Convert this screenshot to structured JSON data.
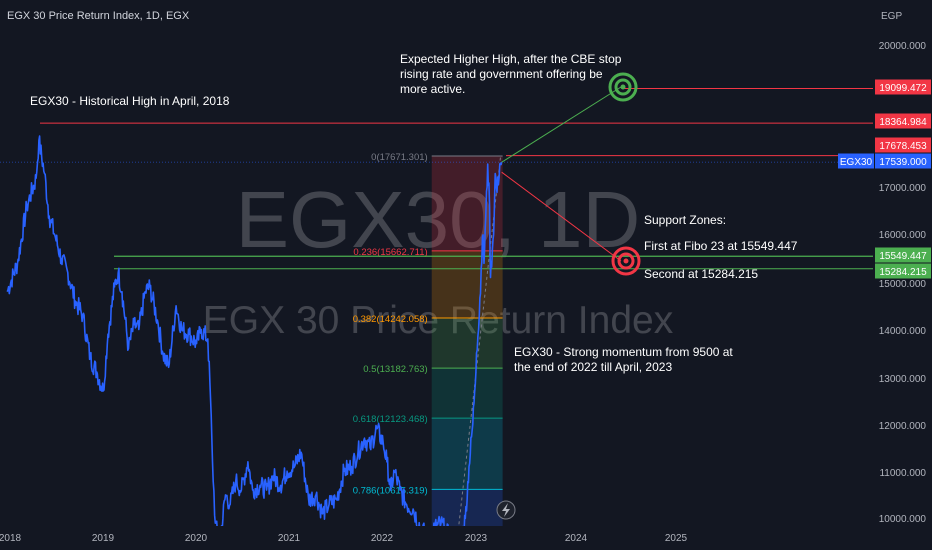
{
  "header": {
    "title": "EGX 30 Price Return Index, 1D, EGX",
    "currency": "EGP"
  },
  "watermark": {
    "symbol": "EGX30, 1D",
    "name": "EGX 30 Price Return Index"
  },
  "colors": {
    "background": "#131722",
    "price_line": "#2962ff",
    "resistance": "#f23645",
    "support": "#4caf50",
    "target": "#4caf50"
  },
  "annotations": {
    "historical_high": "EGX30 - Historical High in April, 2018",
    "expected": [
      "Expected Higher High, after the CBE stop",
      "rising rate and government offering be",
      "more active."
    ],
    "support_title": "Support Zones:",
    "support_1": "First at Fibo 23 at 15549.447",
    "support_2": "Second at 15284.215",
    "momentum": [
      "EGX30 - Strong momentum from 9500 at",
      "the end of 2022 till April, 2023"
    ]
  },
  "chart_data": {
    "type": "line",
    "title": "EGX 30 Price Return Index, 1D, EGX",
    "ylabel": "EGP",
    "ylim": [
      10000,
      21000
    ],
    "xlim": [
      2017.97,
      2025.9
    ],
    "x_ticks": [
      "2018",
      "2019",
      "2020",
      "2021",
      "2022",
      "2023",
      "2024",
      "2025"
    ],
    "x_tick_values": [
      2018,
      2019,
      2020,
      2021,
      2022,
      2023,
      2024,
      2025
    ],
    "y_ticks": [
      "10000.000",
      "11000.000",
      "12000.000",
      "13000.000",
      "14000.000",
      "15000.000",
      "16000.000",
      "17000.000",
      "20000.000"
    ],
    "y_tick_values": [
      10000,
      11000,
      12000,
      13000,
      14000,
      15000,
      16000,
      17000,
      20000
    ],
    "grid": false,
    "series": [
      {
        "name": "EGX30",
        "x": [
          2017.97,
          2018.08,
          2018.18,
          2018.28,
          2018.31,
          2018.37,
          2018.42,
          2018.48,
          2018.55,
          2018.62,
          2018.7,
          2018.78,
          2018.86,
          2018.93,
          2019.0,
          2019.05,
          2019.12,
          2019.16,
          2019.2,
          2019.27,
          2019.33,
          2019.38,
          2019.45,
          2019.5,
          2019.58,
          2019.64,
          2019.7,
          2019.78,
          2019.84,
          2019.92,
          2020.0,
          2020.05,
          2020.12,
          2020.15,
          2020.17,
          2020.2,
          2020.23,
          2020.26,
          2020.31,
          2020.36,
          2020.42,
          2020.48,
          2020.55,
          2020.6,
          2020.68,
          2020.75,
          2020.82,
          2020.9,
          2020.97,
          2021.05,
          2021.12,
          2021.2,
          2021.28,
          2021.35,
          2021.42,
          2021.5,
          2021.58,
          2021.66,
          2021.73,
          2021.8,
          2021.86,
          2021.93,
          2022.0,
          2022.04,
          2022.08,
          2022.12,
          2022.18,
          2022.25,
          2022.32,
          2022.4,
          2022.48,
          2022.55,
          2022.62,
          2022.68,
          2022.74,
          2022.8,
          2022.84,
          2022.88,
          2022.92,
          2022.96,
          2023.0,
          2023.03,
          2023.05,
          2023.07,
          2023.08,
          2023.1,
          2023.12,
          2023.14,
          2023.15,
          2023.17,
          2023.19,
          2023.2,
          2023.22,
          2023.25,
          2023.27
        ],
        "values": [
          14800,
          15400,
          16600,
          17200,
          18000,
          17300,
          16400,
          16000,
          15500,
          15200,
          14600,
          14300,
          13400,
          13100,
          12700,
          13900,
          14900,
          15200,
          14800,
          13600,
          14100,
          14000,
          14800,
          14900,
          14200,
          13500,
          13200,
          14500,
          14000,
          13900,
          13700,
          14000,
          13800,
          12500,
          11200,
          9900,
          9600,
          9700,
          10500,
          10300,
          10800,
          10600,
          11200,
          10600,
          10700,
          10600,
          10900,
          10700,
          11000,
          11100,
          11400,
          10400,
          10500,
          10100,
          10300,
          10400,
          11000,
          11100,
          11400,
          11700,
          11500,
          11900,
          11600,
          11200,
          10600,
          11000,
          10600,
          10300,
          10200,
          9800,
          9600,
          9800,
          9900,
          9700,
          9550,
          9500,
          9600,
          10000,
          11100,
          12000,
          13500,
          14300,
          15300,
          16000,
          15400,
          16400,
          17500,
          16600,
          15100,
          15700,
          16400,
          17300,
          16900,
          17500,
          17539
        ]
      }
    ],
    "fibonacci": {
      "levels": [
        {
          "label": "0(17671.301)",
          "value": 17671.301,
          "color": "#787b86"
        },
        {
          "label": "0.236(15662.711)",
          "value": 15662.711,
          "color": "#f23645"
        },
        {
          "label": "0.382(14242.058)",
          "value": 14242.058,
          "color": "#ff9800"
        },
        {
          "label": "0.5(13182.763)",
          "value": 13182.763,
          "color": "#4caf50"
        },
        {
          "label": "0.618(12123.468)",
          "value": 12123.468,
          "color": "#089981"
        },
        {
          "label": "0.786(10615.319)",
          "value": 10615.319,
          "color": "#00bcd4"
        }
      ],
      "x_start": 2022.52,
      "x_end": 2023.28
    },
    "horizontal_lines": [
      {
        "value": 19099.472,
        "label": "19099.472",
        "color": "#f23645"
      },
      {
        "value": 18364.984,
        "label": "18364.984",
        "color": "#f23645"
      },
      {
        "value": 17678.453,
        "label": "17678.453",
        "color": "#f23645"
      },
      {
        "value": 15549.447,
        "label": "15549.447",
        "color": "#4caf50"
      },
      {
        "value": 15284.215,
        "label": "15284.215",
        "color": "#4caf50"
      }
    ],
    "current_price": {
      "name": "EGX30",
      "value": 17539.0,
      "label": "17539.000"
    }
  }
}
